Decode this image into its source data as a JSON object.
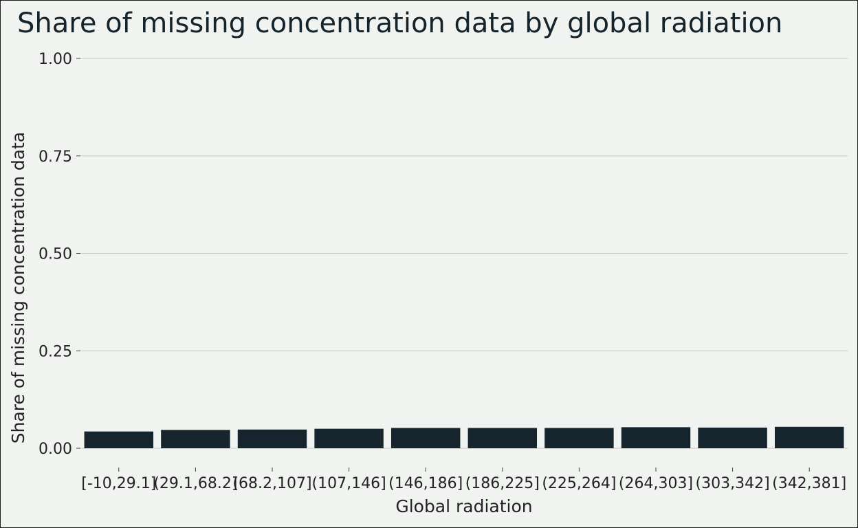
{
  "chart_data": {
    "type": "bar",
    "title": "Share of missing concentration data by global radiation",
    "xlabel": "Global radiation",
    "ylabel": "Share of missing concentration data",
    "categories": [
      "[-10,29.1]",
      "(29.1,68.2]",
      "(68.2,107]",
      "(107,146]",
      "(146,186]",
      "(186,225]",
      "(225,264]",
      "(264,303]",
      "(303,342]",
      "(342,381]"
    ],
    "values": [
      0.043,
      0.047,
      0.048,
      0.05,
      0.052,
      0.052,
      0.052,
      0.054,
      0.053,
      0.055
    ],
    "ylim": [
      0,
      1
    ],
    "yticks": [
      "0.00",
      "0.25",
      "0.50",
      "0.75",
      "1.00"
    ],
    "grid": true,
    "colors": {
      "bar": "#16252d",
      "background": "#f1f3f1",
      "grid": "#c8cac8"
    }
  }
}
